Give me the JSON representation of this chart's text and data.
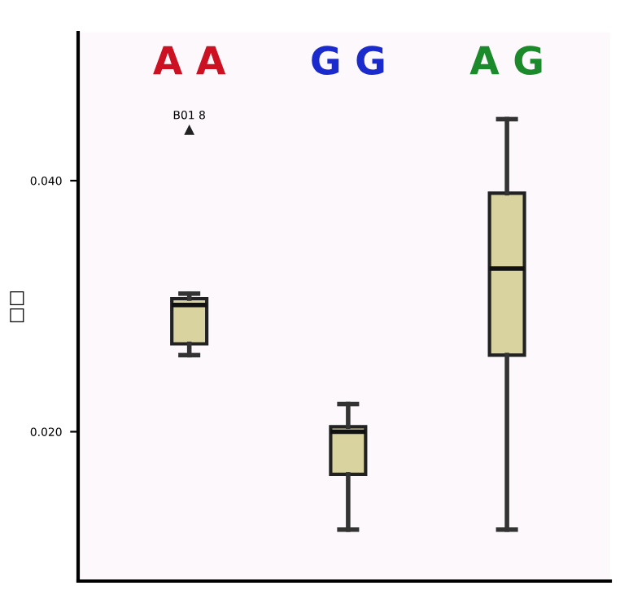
{
  "chart_data": {
    "type": "box",
    "ylabel": "□□",
    "categories": [
      "A A",
      "G G",
      "A G"
    ],
    "color": "#d9d3a0",
    "boxes": [
      {
        "low": 0.0261,
        "q1": 0.027,
        "median": 0.0301,
        "q3": 0.0306,
        "high": 0.031,
        "outliers": [
          0.044
        ]
      },
      {
        "low": 0.0122,
        "q1": 0.0166,
        "median": 0.02,
        "q3": 0.0204,
        "high": 0.0222
      },
      {
        "low": 0.0122,
        "q1": 0.0261,
        "median": 0.033,
        "q3": 0.039,
        "high": 0.0449
      }
    ],
    "annotations": [
      "B01 8"
    ],
    "ylim": [
      0.0081,
      0.0518
    ],
    "yticks": [
      {
        "value": 0.02,
        "label": "0.020"
      },
      {
        "value": 0.04,
        "label": "0.040"
      }
    ],
    "grid": false
  }
}
